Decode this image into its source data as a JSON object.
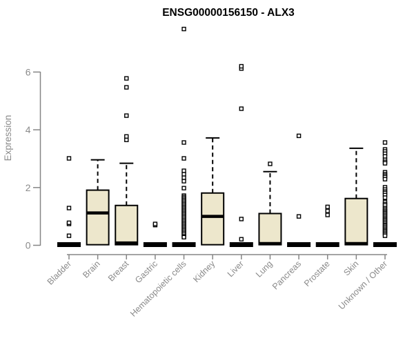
{
  "page": {
    "title": "ENSG00000156150 - ALX3",
    "ylabel": "Expression"
  },
  "chart_data": {
    "type": "boxplot",
    "title": "ENSG00000156150 - ALX3",
    "xlabel": "",
    "ylabel": "Expression",
    "ylim": [
      0,
      7.6
    ],
    "yticks": [
      0,
      2,
      4,
      6
    ],
    "grid": false,
    "legend": "none",
    "colors": {
      "box_fill": "#EDE7CC",
      "box_stroke": "#000000",
      "median": "#000000",
      "outlier_fill": "#ffffff",
      "axis": "#858585",
      "tick_label": "#8a8a8a",
      "title": "#000000"
    },
    "categories": [
      "Bladder",
      "Brain",
      "Breast",
      "Gastric",
      "Hematopoietic cells",
      "Kidney",
      "Liver",
      "Lung",
      "Pancreas",
      "Prostate",
      "Skin",
      "Unknown / Other"
    ],
    "boxes": [
      {
        "category": "Bladder",
        "flat": true,
        "q1": 0,
        "median": 0.05,
        "q3": 0.1,
        "whisker_low": 0,
        "whisker_high": 0.1,
        "outliers": [
          0.33,
          0.74,
          0.78,
          1.29,
          3.01
        ]
      },
      {
        "category": "Brain",
        "flat": false,
        "q1": 0.02,
        "median": 1.12,
        "q3": 1.91,
        "whisker_low": 0,
        "whisker_high": 2.96,
        "outliers": []
      },
      {
        "category": "Breast",
        "flat": false,
        "q1": 0.02,
        "median": 0.08,
        "q3": 1.38,
        "whisker_low": 0,
        "whisker_high": 2.84,
        "outliers": [
          3.65,
          3.77,
          4.49,
          5.47,
          5.78
        ]
      },
      {
        "category": "Gastric",
        "flat": true,
        "q1": 0,
        "median": 0.05,
        "q3": 0.1,
        "whisker_low": 0,
        "whisker_high": 0.1,
        "outliers": [
          0.7,
          0.74
        ]
      },
      {
        "category": "Hematopoietic cells",
        "flat": true,
        "q1": 0,
        "median": 0.05,
        "q3": 0.1,
        "whisker_low": 0,
        "whisker_high": 0.1,
        "outliers": [
          7.49,
          3.56,
          3.01,
          2.58,
          2.46,
          2.34,
          2.22,
          1.98,
          1.72,
          1.67,
          1.62,
          1.57,
          1.52,
          1.47,
          1.42,
          1.37,
          1.32,
          1.27,
          1.22,
          1.17,
          1.12,
          1.07,
          1.02,
          0.97,
          0.92,
          0.87,
          0.82,
          0.77,
          0.72,
          0.67,
          0.62,
          0.57,
          0.52,
          0.47,
          0.42,
          0.37,
          0.31,
          0.28
        ]
      },
      {
        "category": "Kidney",
        "flat": false,
        "q1": 0.02,
        "median": 1.0,
        "q3": 1.81,
        "whisker_low": 0,
        "whisker_high": 3.72,
        "outliers": []
      },
      {
        "category": "Liver",
        "flat": true,
        "q1": 0,
        "median": 0.05,
        "q3": 0.1,
        "whisker_low": 0,
        "whisker_high": 0.1,
        "outliers": [
          0.21,
          0.91,
          4.73,
          6.12,
          6.2
        ]
      },
      {
        "category": "Lung",
        "flat": false,
        "q1": 0.02,
        "median": 0.06,
        "q3": 1.1,
        "whisker_low": 0,
        "whisker_high": 2.55,
        "outliers": [
          2.82
        ]
      },
      {
        "category": "Pancreas",
        "flat": true,
        "q1": 0,
        "median": 0.05,
        "q3": 0.1,
        "whisker_low": 0,
        "whisker_high": 0.1,
        "outliers": [
          1.0,
          3.79
        ]
      },
      {
        "category": "Prostate",
        "flat": true,
        "q1": 0,
        "median": 0.05,
        "q3": 0.1,
        "whisker_low": 0,
        "whisker_high": 0.1,
        "outliers": [
          1.05,
          1.19,
          1.33
        ]
      },
      {
        "category": "Skin",
        "flat": false,
        "q1": 0.02,
        "median": 0.06,
        "q3": 1.62,
        "whisker_low": 0,
        "whisker_high": 3.36,
        "outliers": []
      },
      {
        "category": "Unknown / Other",
        "flat": true,
        "q1": 0,
        "median": 0.05,
        "q3": 0.1,
        "whisker_low": 0,
        "whisker_high": 0.1,
        "outliers": [
          3.56,
          3.32,
          3.25,
          3.17,
          3.08,
          2.96,
          2.89,
          2.84,
          2.53,
          2.46,
          2.41,
          2.36,
          2.29,
          2.01,
          1.93,
          1.86,
          1.81,
          1.74,
          1.65,
          1.5,
          1.43,
          1.38,
          1.29,
          1.24,
          1.19,
          1.14,
          1.1,
          1.05,
          1.0,
          0.95,
          0.9,
          0.86,
          0.81,
          0.76,
          0.71,
          0.67,
          0.62,
          0.57,
          0.52,
          0.48,
          0.43,
          0.38,
          0.33
        ]
      }
    ]
  }
}
